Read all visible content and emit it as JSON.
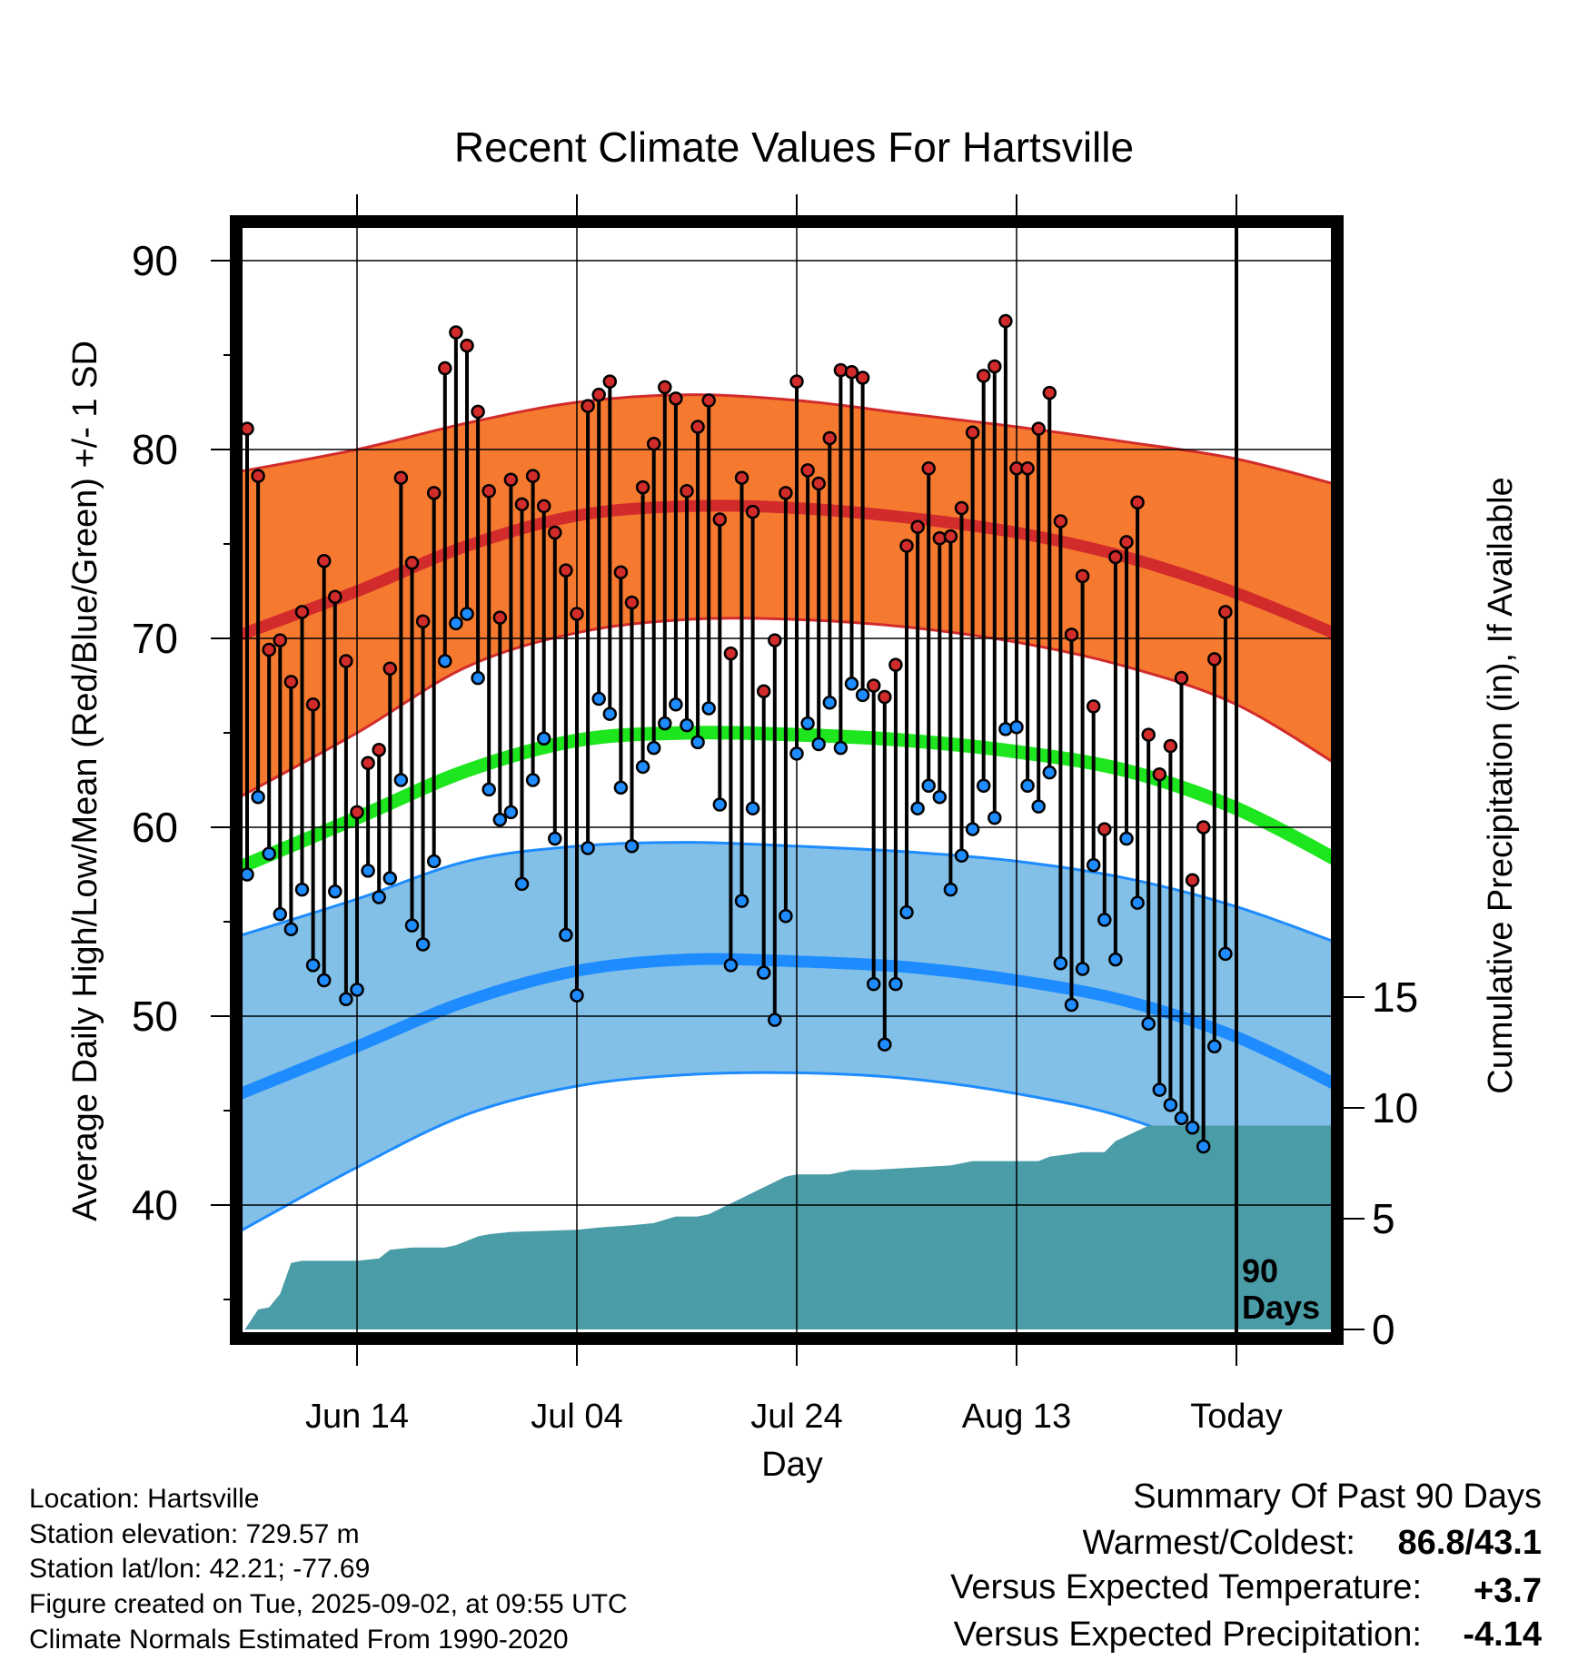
{
  "chart_data": {
    "type": "line",
    "title": "Recent Climate Values For Hartsville",
    "xlabel": "Day",
    "ylabel": "Average Daily High/Low/Mean (Red/Blue/Green) +/- 1 SD",
    "y2label": "Cumulative Precipitation (in), If Available",
    "xlim": [
      -11,
      90
    ],
    "ylim": [
      33.2,
      92.0
    ],
    "y2lim": [
      0,
      31.5
    ],
    "x_ticks": [
      {
        "x": 0,
        "label": "Jun 14"
      },
      {
        "x": 20,
        "label": "Jul 04"
      },
      {
        "x": 40,
        "label": "Jul 24"
      },
      {
        "x": 60,
        "label": "Aug 13"
      },
      {
        "x": 80,
        "label": "Today"
      }
    ],
    "y_ticks": [
      40,
      50,
      60,
      70,
      80,
      90
    ],
    "y2_ticks": [
      0,
      5,
      10,
      15
    ],
    "today_x": 80,
    "today_note": [
      "90",
      "Days"
    ],
    "grid": true,
    "colors": {
      "high_band": "#f57a30",
      "high_line": "#d22b2b",
      "low_band": "#82c0e8",
      "low_line": "#1e8cff",
      "mean_line": "#1ee61e",
      "precip": "#4a9ca7",
      "high_dot": "#d22b2b",
      "low_dot": "#1e8cff"
    },
    "normals": {
      "x": [
        -11,
        0,
        10,
        20,
        30,
        40,
        50,
        60,
        70,
        80,
        90
      ],
      "high": [
        70.1,
        72.5,
        74.9,
        76.5,
        77.0,
        76.9,
        76.4,
        75.6,
        74.3,
        72.4,
        70.0
      ],
      "high_sd_top": [
        78.8,
        80.0,
        81.4,
        82.5,
        82.9,
        82.6,
        81.9,
        81.2,
        80.4,
        79.5,
        78.0
      ],
      "high_sd_bot": [
        61.5,
        65.0,
        68.5,
        70.3,
        71.0,
        71.0,
        70.6,
        69.8,
        68.5,
        66.5,
        63.0
      ],
      "mean": [
        57.8,
        60.5,
        63.0,
        64.6,
        65.0,
        64.9,
        64.6,
        64.0,
        63.0,
        61.0,
        58.0
      ],
      "low": [
        45.8,
        48.4,
        50.8,
        52.4,
        53.0,
        52.9,
        52.6,
        51.9,
        50.8,
        48.9,
        46.1
      ],
      "low_sd_top": [
        54.2,
        56.2,
        58.2,
        59.0,
        59.2,
        59.0,
        58.7,
        58.2,
        57.3,
        55.8,
        53.7
      ],
      "low_sd_bot": [
        38.5,
        42.0,
        44.8,
        46.3,
        46.9,
        47.0,
        46.7,
        45.9,
        44.6,
        42.2,
        38.3
      ]
    },
    "series": [
      {
        "name": "High",
        "values": [
          81.1,
          78.6,
          69.4,
          69.9,
          67.7,
          71.4,
          66.5,
          74.1,
          72.2,
          68.8,
          60.8,
          63.4,
          64.1,
          68.4,
          78.5,
          74.0,
          70.9,
          77.7,
          84.3,
          86.2,
          85.5,
          82.0,
          77.8,
          71.1,
          78.4,
          77.1,
          78.6,
          77.0,
          75.6,
          73.6,
          71.3,
          82.3,
          82.9,
          83.6,
          73.5,
          71.9,
          78.0,
          80.3,
          83.3,
          82.7,
          77.8,
          81.2,
          82.6,
          76.3,
          69.2,
          78.5,
          76.7,
          67.2,
          69.9,
          77.7,
          83.6,
          78.9,
          78.2,
          80.6,
          84.2,
          84.1,
          83.8,
          67.5,
          66.9,
          68.6,
          74.9,
          75.9,
          79.0,
          75.3,
          75.4,
          76.9,
          80.9,
          83.9,
          84.4,
          86.8,
          79.0,
          79.0,
          81.1,
          83.0,
          76.2,
          70.2,
          73.3,
          66.4,
          59.9,
          74.3,
          75.1,
          77.2,
          64.9,
          62.8,
          64.3,
          67.9,
          57.2,
          60.0,
          68.9,
          71.4
        ]
      },
      {
        "name": "Low",
        "values": [
          57.5,
          61.6,
          58.6,
          55.4,
          54.6,
          56.7,
          52.7,
          51.9,
          56.6,
          50.9,
          51.4,
          57.7,
          56.3,
          57.3,
          62.5,
          54.8,
          53.8,
          58.2,
          68.8,
          70.8,
          71.3,
          67.9,
          62.0,
          60.4,
          60.8,
          57.0,
          62.5,
          64.7,
          59.4,
          54.3,
          51.1,
          58.9,
          66.8,
          66.0,
          62.1,
          59.0,
          63.2,
          64.2,
          65.5,
          66.5,
          65.4,
          64.5,
          66.3,
          61.2,
          52.7,
          56.1,
          61.0,
          52.3,
          49.8,
          55.3,
          63.9,
          65.5,
          64.4,
          66.6,
          64.2,
          67.6,
          67.0,
          51.7,
          48.5,
          51.7,
          55.5,
          61.0,
          62.2,
          61.6,
          56.7,
          58.5,
          59.9,
          62.2,
          60.5,
          65.2,
          65.3,
          62.2,
          61.1,
          62.9,
          52.8,
          50.6,
          52.5,
          58.0,
          55.1,
          53.0,
          59.4,
          56.0,
          49.6,
          46.1,
          45.3,
          44.6,
          44.1,
          43.1,
          48.4,
          53.3
        ]
      }
    ],
    "precip": {
      "x": [
        -10.2,
        -9.0,
        -8.0,
        -7.0,
        -6.0,
        -5.0,
        0.0,
        2.0,
        3.0,
        5.0,
        8.0,
        9.0,
        11.0,
        12.0,
        14.0,
        20.0,
        22.0,
        25.0,
        27.0,
        29.0,
        31.0,
        32.0,
        39.0,
        40.0,
        41.0,
        43.0,
        44.0,
        45.0,
        46.0,
        47.0,
        54.0,
        55.0,
        56.0,
        57.0,
        59.0,
        61.0,
        62.0,
        63.0,
        66.0,
        68.0,
        69.0,
        72.0,
        89.5
      ],
      "value": [
        0.0,
        0.9,
        1.0,
        1.6,
        3.0,
        3.1,
        3.1,
        3.2,
        3.6,
        3.7,
        3.7,
        3.8,
        4.2,
        4.3,
        4.4,
        4.5,
        4.6,
        4.7,
        4.8,
        5.1,
        5.1,
        5.2,
        6.9,
        7.0,
        7.0,
        7.0,
        7.1,
        7.2,
        7.2,
        7.2,
        7.4,
        7.5,
        7.6,
        7.6,
        7.6,
        7.6,
        7.6,
        7.8,
        8.0,
        8.0,
        8.5,
        9.2,
        9.2
      ]
    }
  },
  "footer": {
    "location": "Location: Hartsville",
    "elevation": "Station elevation: 729.57 m",
    "latlon": "Station lat/lon: 42.21; -77.69",
    "created": "Figure created on Tue, 2025-09-02, at 09:55 UTC",
    "normals_period": "Climate Normals Estimated From 1990-2020"
  },
  "summary": {
    "heading": "Summary Of Past 90 Days",
    "warm_cold_label": "Warmest/Coldest:",
    "warm_cold_value": "86.8/43.1",
    "temp_label": "Versus Expected Temperature:",
    "temp_value": "+3.7",
    "temp_color": "#d22b2b",
    "precip_label": "Versus Expected Precipitation:",
    "precip_value": "-4.14",
    "precip_color": "#a0522d"
  }
}
